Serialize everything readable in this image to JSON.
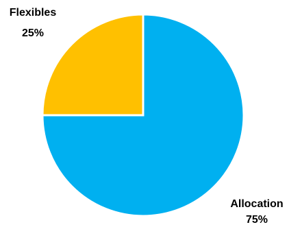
{
  "chart_data": {
    "type": "pie",
    "title": "",
    "slices": [
      {
        "label": "Allocation",
        "value": 75,
        "display": "75%",
        "color": "#00B0F0"
      },
      {
        "label": "Flexibles",
        "value": 25,
        "display": "25%",
        "color": "#FFC000"
      }
    ],
    "start_angle_deg": 0,
    "direction": "clockwise",
    "legend": "none",
    "separator_color": "#FFFFFF"
  }
}
